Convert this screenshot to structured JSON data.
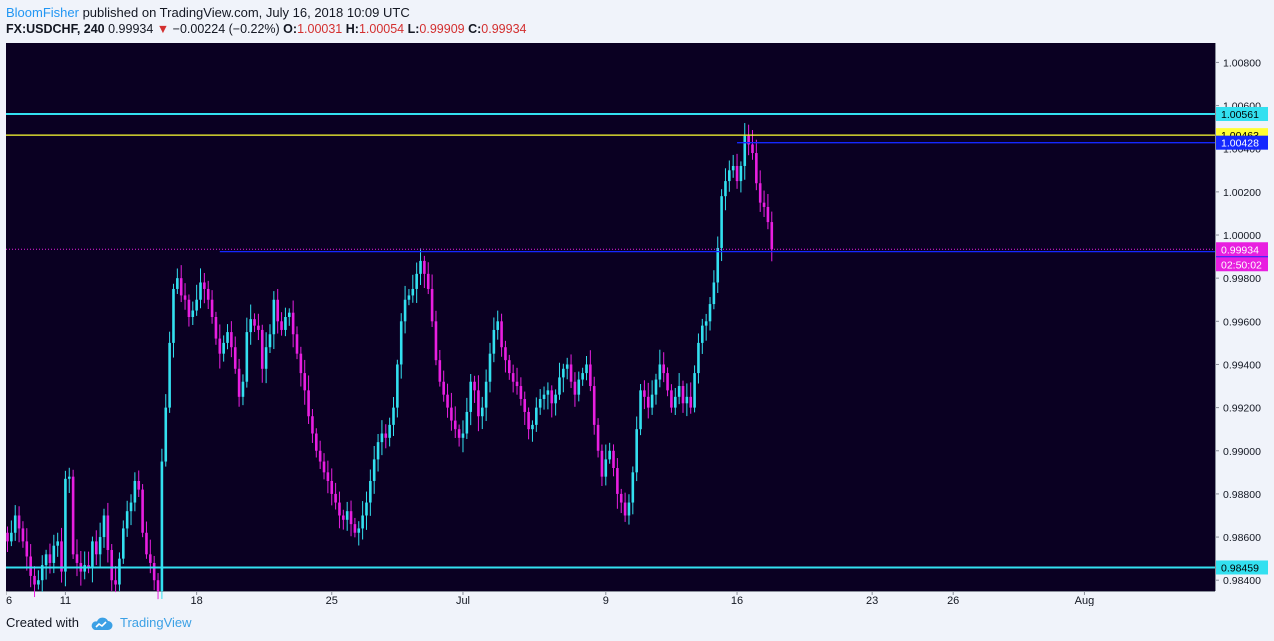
{
  "header": {
    "author": "BloomFisher",
    "published_text": " published on TradingView.com, July 16, 2018 10:09 UTC",
    "symbol": "FX:USDCHF, 240",
    "last": "0.99934",
    "change_arrow": "▼",
    "change": "−0.00224 (−0.22%)",
    "o_label": "O:",
    "o_value": "1.00031",
    "h_label": "H:",
    "h_value": "1.00054",
    "l_label": "L:",
    "l_value": "0.99909",
    "c_label": "C:",
    "c_value": "0.99934"
  },
  "footer": {
    "created_with": "Created with",
    "brand": "TradingView"
  },
  "colors": {
    "background": "#0a0022",
    "up": "#33e0f0",
    "down": "#e81fe0",
    "blue_line": "#1428ff",
    "yellow_line": "#ffff33",
    "axis_text": "#131722"
  },
  "chart_data": {
    "type": "candlestick",
    "symbol": "FX:USDCHF",
    "interval": "240",
    "ylim": [
      0.9835,
      1.0089
    ],
    "y_ticks": [
      "1.00800",
      "1.00600",
      "1.00400",
      "1.00200",
      "1.00000",
      "0.99800",
      "0.99600",
      "0.99400",
      "0.99200",
      "0.99000",
      "0.98800",
      "0.98600",
      "0.98400"
    ],
    "x_ticks": [
      {
        "label": "6",
        "bar": -5
      },
      {
        "label": "11",
        "bar": 15
      },
      {
        "label": "18",
        "bar": 49
      },
      {
        "label": "25",
        "bar": 84
      },
      {
        "label": "Jul",
        "bar": 118
      },
      {
        "label": "9",
        "bar": 155
      },
      {
        "label": "16",
        "bar": 189
      },
      {
        "label": "23",
        "bar": 224
      },
      {
        "label": "26",
        "bar": 245
      },
      {
        "label": "Aug",
        "bar": 279
      }
    ],
    "horizontal_lines": [
      {
        "price": 1.00561,
        "label": "1.00561",
        "color": "#33e0f0",
        "style": "solid"
      },
      {
        "price": 1.00463,
        "label": "1.00463",
        "color": "#ffff33",
        "style": "solid"
      },
      {
        "price": 1.00428,
        "label": "1.00428",
        "color": "#1428ff",
        "style": "solid",
        "from_bar": 189
      },
      {
        "price": 0.99923,
        "label": "0.99923",
        "color": "#1428ff",
        "style": "solid",
        "from_bar": 55
      },
      {
        "price": 0.98459,
        "label": "0.98459",
        "color": "#33e0f0",
        "style": "solid"
      }
    ],
    "last_price": {
      "price": 0.99934,
      "label": "0.99934",
      "countdown": "02:50:02",
      "color": "#e81fe0"
    },
    "candles_close": [
      0.9858,
      0.9862,
      0.987,
      0.9864,
      0.9858,
      0.9851,
      0.9842,
      0.9838,
      0.984,
      0.9847,
      0.9852,
      0.9848,
      0.9856,
      0.9858,
      0.9844,
      0.9887,
      0.9888,
      0.9852,
      0.9848,
      0.9844,
      0.9847,
      0.9846,
      0.9858,
      0.9852,
      0.986,
      0.987,
      0.9854,
      0.984,
      0.9838,
      0.985,
      0.9864,
      0.9872,
      0.9876,
      0.9886,
      0.9882,
      0.9862,
      0.9852,
      0.9848,
      0.984,
      0.9835,
      0.9895,
      0.992,
      0.995,
      0.9975,
      0.998,
      0.9972,
      0.997,
      0.9962,
      0.9965,
      0.997,
      0.9978,
      0.9975,
      0.997,
      0.9962,
      0.9952,
      0.9945,
      0.995,
      0.9955,
      0.9948,
      0.9938,
      0.9925,
      0.9932,
      0.9955,
      0.9961,
      0.9958,
      0.9956,
      0.9938,
      0.9948,
      0.9954,
      0.997,
      0.996,
      0.9956,
      0.9962,
      0.9964,
      0.9954,
      0.9945,
      0.9936,
      0.9928,
      0.9916,
      0.9908,
      0.99,
      0.9895,
      0.989,
      0.9886,
      0.988,
      0.9876,
      0.987,
      0.9868,
      0.9872,
      0.9866,
      0.9862,
      0.9864,
      0.987,
      0.9876,
      0.9886,
      0.9896,
      0.9904,
      0.9908,
      0.9906,
      0.9912,
      0.992,
      0.994,
      0.996,
      0.997,
      0.9972,
      0.9975,
      0.9982,
      0.9988,
      0.9982,
      0.9975,
      0.996,
      0.9942,
      0.9932,
      0.9926,
      0.992,
      0.9914,
      0.991,
      0.9906,
      0.9908,
      0.9918,
      0.9932,
      0.9928,
      0.9916,
      0.992,
      0.9932,
      0.9945,
      0.9956,
      0.996,
      0.9948,
      0.9942,
      0.9936,
      0.9932,
      0.993,
      0.9924,
      0.9918,
      0.991,
      0.9912,
      0.992,
      0.9924,
      0.9926,
      0.9928,
      0.9922,
      0.9926,
      0.9934,
      0.9938,
      0.994,
      0.9932,
      0.9926,
      0.9933,
      0.9936,
      0.994,
      0.993,
      0.9912,
      0.99,
      0.9888,
      0.9896,
      0.99,
      0.9892,
      0.988,
      0.9876,
      0.987,
      0.9876,
      0.989,
      0.991,
      0.9928,
      0.9925,
      0.992,
      0.9926,
      0.9933,
      0.994,
      0.9936,
      0.9928,
      0.992,
      0.9925,
      0.993,
      0.9922,
      0.9925,
      0.992,
      0.9936,
      0.995,
      0.9958,
      0.996,
      0.9968,
      0.9978,
      0.9994,
      1.0018,
      1.0025,
      1.003,
      1.0032,
      1.0025,
      1.0032,
      1.0046,
      1.0042,
      1.0038,
      1.0024,
      1.0015,
      1.0013,
      1.0006,
      0.99934
    ]
  }
}
